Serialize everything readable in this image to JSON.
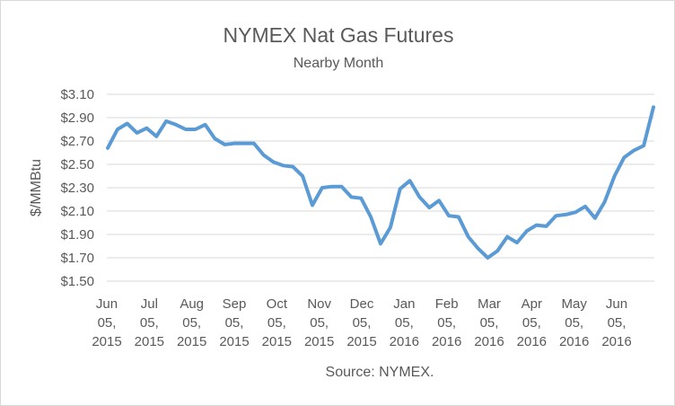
{
  "chart_data": {
    "type": "line",
    "title": "NYMEX Nat Gas Futures",
    "subtitle": "Nearby Month",
    "ylabel": "$/MMBtu",
    "xlabel": "",
    "source": "Source: NYMEX.",
    "ylim": [
      1.5,
      3.1
    ],
    "yticks": [
      "$3.10",
      "$2.90",
      "$2.70",
      "$2.50",
      "$2.30",
      "$2.10",
      "$1.90",
      "$1.70",
      "$1.50"
    ],
    "ytick_values": [
      3.1,
      2.9,
      2.7,
      2.5,
      2.3,
      2.1,
      1.9,
      1.7,
      1.5
    ],
    "xticks": [
      {
        "label": [
          "Jun",
          "05,",
          "2015"
        ]
      },
      {
        "label": [
          "Jul",
          "05,",
          "2015"
        ]
      },
      {
        "label": [
          "Aug",
          "05,",
          "2015"
        ]
      },
      {
        "label": [
          "Sep",
          "05,",
          "2015"
        ]
      },
      {
        "label": [
          "Oct",
          "05,",
          "2015"
        ]
      },
      {
        "label": [
          "Nov",
          "05,",
          "2015"
        ]
      },
      {
        "label": [
          "Dec",
          "05,",
          "2015"
        ]
      },
      {
        "label": [
          "Jan",
          "05,",
          "2016"
        ]
      },
      {
        "label": [
          "Feb",
          "05,",
          "2016"
        ]
      },
      {
        "label": [
          "Mar",
          "05,",
          "2016"
        ]
      },
      {
        "label": [
          "Apr",
          "05,",
          "2016"
        ]
      },
      {
        "label": [
          "May",
          "05,",
          "2016"
        ]
      },
      {
        "label": [
          "Jun",
          "05,",
          "2016"
        ]
      }
    ],
    "grid": true,
    "legend": "none",
    "line_color": "#5b9bd5",
    "series": [
      {
        "values": [
          2.64,
          2.8,
          2.85,
          2.77,
          2.81,
          2.74,
          2.87,
          2.84,
          2.8,
          2.8,
          2.84,
          2.72,
          2.67,
          2.68,
          2.68,
          2.68,
          2.58,
          2.52,
          2.49,
          2.48,
          2.4,
          2.15,
          2.3,
          2.31,
          2.31,
          2.22,
          2.21,
          2.05,
          1.82,
          1.96,
          2.29,
          2.36,
          2.22,
          2.13,
          2.19,
          2.06,
          2.05,
          1.88,
          1.78,
          1.7,
          1.76,
          1.88,
          1.83,
          1.93,
          1.98,
          1.97,
          2.06,
          2.07,
          2.09,
          2.14,
          2.04,
          2.18,
          2.4,
          2.56,
          2.62,
          2.66,
          2.99
        ]
      }
    ]
  }
}
